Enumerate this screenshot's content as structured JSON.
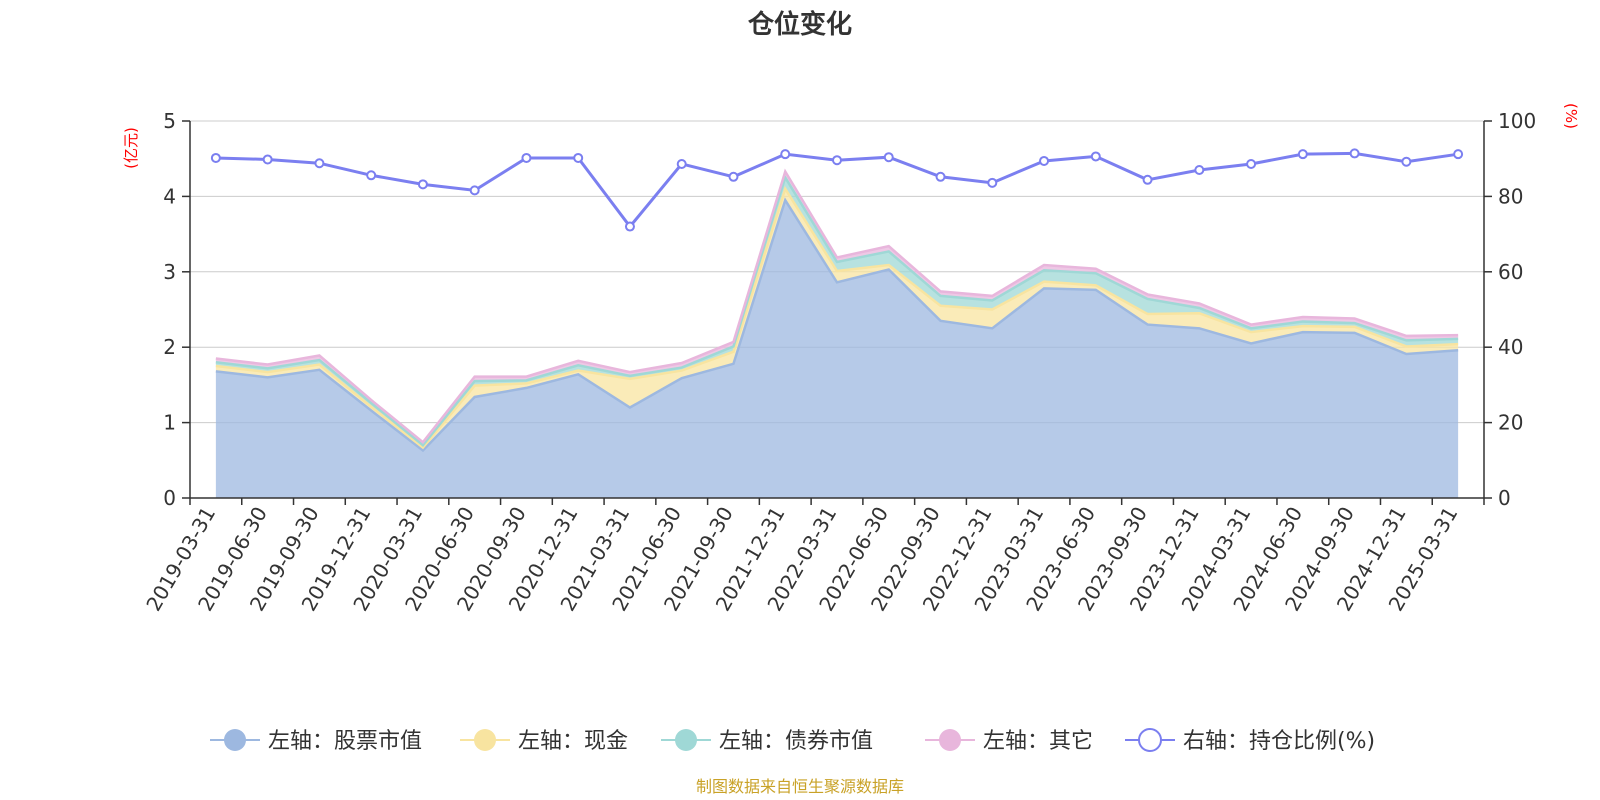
{
  "chart_data": {
    "type": "area",
    "title": "仓位变化",
    "left_axis_unit": "(亿元)",
    "right_axis_unit": "(%)",
    "ylim_left": [
      0,
      5
    ],
    "yticks_left": [
      "0",
      "1",
      "2",
      "3",
      "4",
      "5"
    ],
    "ylim_right": [
      0,
      100
    ],
    "yticks_right": [
      "0",
      "20",
      "40",
      "60",
      "80",
      "100"
    ],
    "grid": true,
    "legend_position": "bottom",
    "categories": [
      "2019-03-31",
      "2019-06-30",
      "2019-09-30",
      "2019-12-31",
      "2020-03-31",
      "2020-06-30",
      "2020-09-30",
      "2020-12-31",
      "2021-03-31",
      "2021-06-30",
      "2021-09-30",
      "2021-12-31",
      "2022-03-31",
      "2022-06-30",
      "2022-09-30",
      "2022-12-31",
      "2023-03-31",
      "2023-06-30",
      "2023-09-30",
      "2023-12-31",
      "2024-03-31",
      "2024-06-30",
      "2024-09-30",
      "2024-12-31",
      "2025-03-31"
    ],
    "series": [
      {
        "name": "左轴：股票市值",
        "axis": "left",
        "stack": true,
        "color": "#9db8e0",
        "values": [
          1.68,
          1.6,
          1.7,
          1.16,
          0.63,
          1.34,
          1.46,
          1.64,
          1.2,
          1.59,
          1.78,
          3.95,
          2.86,
          3.03,
          2.35,
          2.25,
          2.78,
          2.76,
          2.3,
          2.25,
          2.05,
          2.2,
          2.19,
          1.91,
          1.96
        ]
      },
      {
        "name": "左轴：现金",
        "axis": "left",
        "stack": true,
        "color": "#f8e4a0",
        "values": [
          0.07,
          0.07,
          0.07,
          0.05,
          0.04,
          0.15,
          0.06,
          0.05,
          0.38,
          0.1,
          0.16,
          0.15,
          0.15,
          0.06,
          0.2,
          0.25,
          0.09,
          0.06,
          0.14,
          0.2,
          0.15,
          0.08,
          0.08,
          0.1,
          0.08
        ]
      },
      {
        "name": "左轴：债券市值",
        "axis": "left",
        "stack": true,
        "color": "#9fd8d6",
        "values": [
          0.05,
          0.05,
          0.06,
          0.05,
          0.03,
          0.06,
          0.04,
          0.07,
          0.04,
          0.04,
          0.07,
          0.15,
          0.12,
          0.18,
          0.13,
          0.12,
          0.15,
          0.16,
          0.2,
          0.07,
          0.05,
          0.06,
          0.05,
          0.08,
          0.07
        ]
      },
      {
        "name": "左轴：其它",
        "axis": "left",
        "stack": true,
        "color": "#e8b6dc",
        "values": [
          0.05,
          0.05,
          0.06,
          0.04,
          0.04,
          0.06,
          0.05,
          0.06,
          0.05,
          0.06,
          0.06,
          0.08,
          0.06,
          0.07,
          0.06,
          0.06,
          0.07,
          0.06,
          0.06,
          0.06,
          0.05,
          0.06,
          0.06,
          0.06,
          0.05
        ]
      },
      {
        "name": "右轴：持仓比例(%)",
        "axis": "right",
        "type": "line",
        "color": "#7b7ff0",
        "values": [
          90.2,
          89.8,
          88.8,
          85.6,
          83.2,
          81.6,
          90.2,
          90.2,
          72.0,
          88.6,
          85.2,
          91.2,
          89.6,
          90.4,
          85.2,
          83.6,
          89.4,
          90.6,
          84.4,
          87.0,
          88.6,
          91.2,
          91.4,
          89.2,
          91.2
        ]
      }
    ]
  },
  "source_text": "制图数据来自恒生聚源数据库"
}
